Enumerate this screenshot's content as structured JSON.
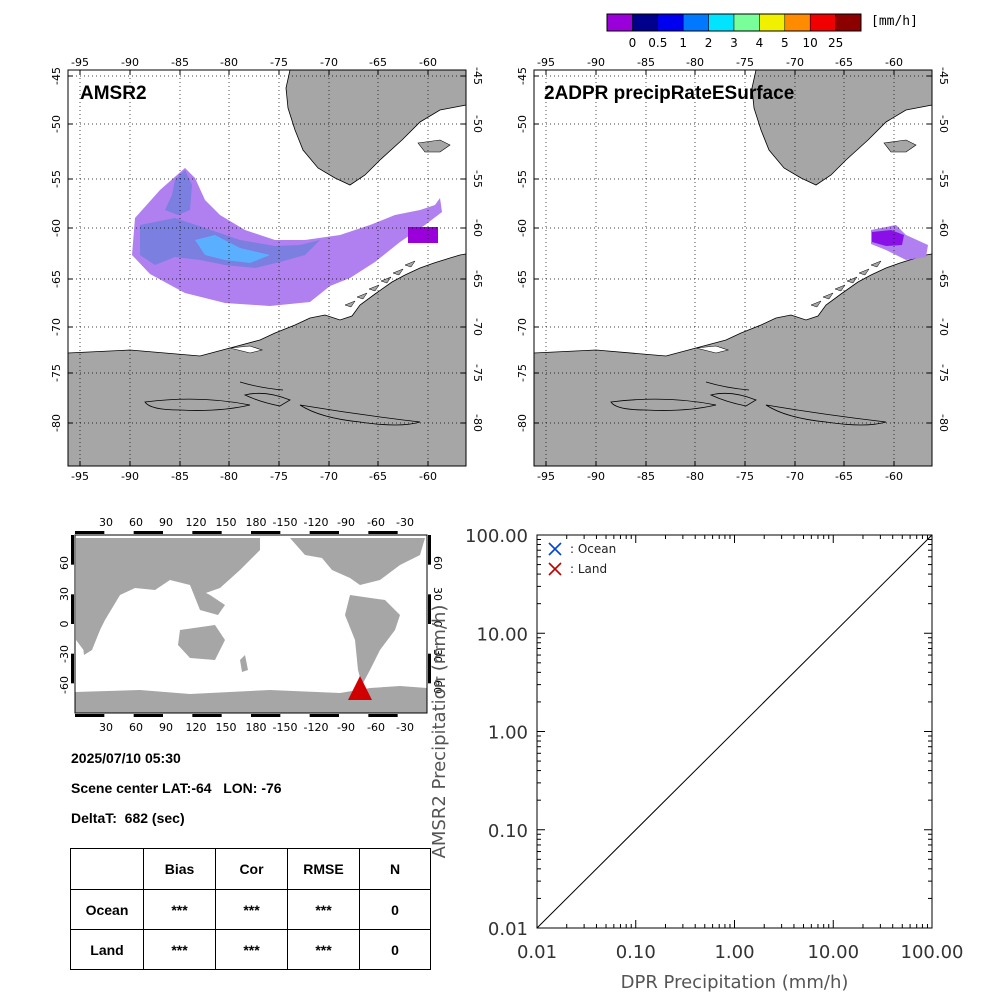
{
  "colorbar": {
    "unit": "[mm/h]",
    "labels": [
      "0",
      "0.5",
      "1",
      "2",
      "3",
      "4",
      "5",
      "10",
      "25"
    ],
    "colors": [
      "#9a00d9",
      "#00008c",
      "#0000f0",
      "#0078ff",
      "#00e4ff",
      "#78ff9a",
      "#f0f000",
      "#ff8c00",
      "#f00000",
      "#8c0000"
    ]
  },
  "maps": {
    "lon_labels": [
      "-95",
      "-90",
      "-85",
      "-80",
      "-75",
      "-70",
      "-65",
      "-60"
    ],
    "lat_labels": [
      "-45",
      "-50",
      "-55",
      "-60",
      "-65",
      "-70",
      "-75",
      "-80"
    ],
    "left_title": "AMSR2",
    "right_title": "2ADPR precipRateESurface",
    "land_color": "#a6a6a6",
    "amsr2_light_color": "#b07ff0",
    "amsr2_mid_color": "#7b7fe0",
    "amsr2_bright_color": "#5ab0ff",
    "dpr_dark_color": "#8a10e8",
    "dpr_light_color": "#b07ff0"
  },
  "world_map": {
    "top_lon_labels": [
      "30",
      "60",
      "90",
      "120",
      "150",
      "180",
      "-150",
      "-120",
      "-90",
      "-60",
      "-30"
    ],
    "bottom_lon_labels": [
      "30",
      "60",
      "90",
      "120",
      "150",
      "180",
      "-150",
      "-120",
      "-90",
      "-60",
      "-30"
    ],
    "left_lat_labels": [
      "60",
      "30",
      "0",
      "-30",
      "-60"
    ],
    "right_lat_labels": [
      "60",
      "30",
      "0",
      "-30",
      "-60"
    ],
    "marker_color": "#d00000"
  },
  "info": {
    "datetime": "2025/07/10 05:30",
    "scene_center": "Scene center LAT:-64   LON: -76",
    "delta_t": "DeltaT:  682 (sec)"
  },
  "stats_table": {
    "headers": [
      "",
      "Bias",
      "Cor",
      "RMSE",
      "N"
    ],
    "rows": [
      {
        "label": "Ocean",
        "bias": "***",
        "cor": "***",
        "rmse": "***",
        "n": "0"
      },
      {
        "label": "Land",
        "bias": "***",
        "cor": "***",
        "rmse": "***",
        "n": "0"
      }
    ]
  },
  "chart_data": {
    "type": "scatter",
    "xlabel": "DPR Precipitation (mm/h)",
    "ylabel": "AMSR2 Precipitation (mm/h)",
    "xscale": "log",
    "yscale": "log",
    "xlim": [
      0.01,
      100
    ],
    "ylim": [
      0.01,
      100
    ],
    "x_tick_labels": [
      "0.01",
      "0.10",
      "1.00",
      "10.00",
      "100.00"
    ],
    "y_tick_labels": [
      "0.01",
      "0.10",
      "1.00",
      "10.00",
      "100.00"
    ],
    "legend": [
      {
        "label": ": Ocean",
        "color": "#0044dd"
      },
      {
        "label": ": Land",
        "color": "#c00000"
      }
    ],
    "legend_position": "top-left",
    "series": [
      {
        "name": ": Ocean",
        "x": [],
        "y": []
      },
      {
        "name": ": Land",
        "x": [],
        "y": []
      }
    ],
    "reference_line": "1:1 diagonal"
  }
}
